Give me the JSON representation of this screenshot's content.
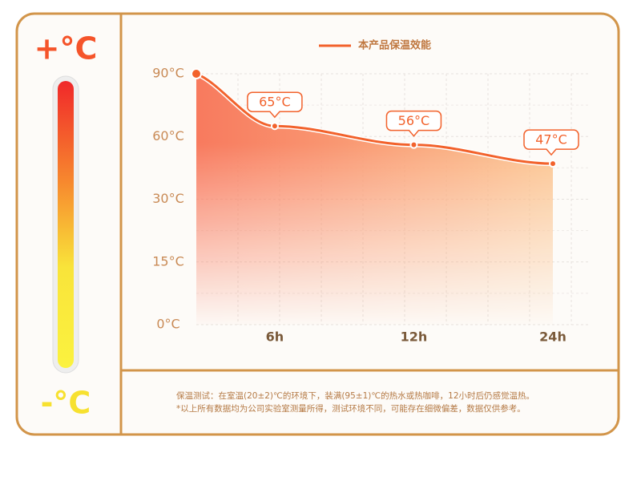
{
  "thermometer": {
    "top_label": "+°C",
    "bottom_label": "-°C"
  },
  "chart_data": {
    "type": "line",
    "categories": [
      null,
      "6h",
      "12h",
      "24h"
    ],
    "series": [
      {
        "name": "本产品保温效能",
        "color": "#f2622c",
        "values": [
          90,
          65,
          56,
          47
        ],
        "value_labels": [
          null,
          "65°C",
          "56°C",
          "47°C"
        ]
      }
    ],
    "ylim": [
      0,
      90
    ],
    "yticks": [
      {
        "value": 0,
        "label": "0°C"
      },
      {
        "value": 15,
        "label": "15°C"
      },
      {
        "value": 30,
        "label": "30°C"
      },
      {
        "value": 60,
        "label": "60°C"
      },
      {
        "value": 90,
        "label": "90°C"
      }
    ],
    "grid": true
  },
  "notes": [
    "保温测试：在室温(20±2)℃的环境下，装满(95±1)℃的热水或热咖啡，12小时后仍感觉温热。",
    "*以上所有数据均为公司实验室测量所得，测试环境不同，可能存在细微偏差，数据仅供参考。"
  ]
}
